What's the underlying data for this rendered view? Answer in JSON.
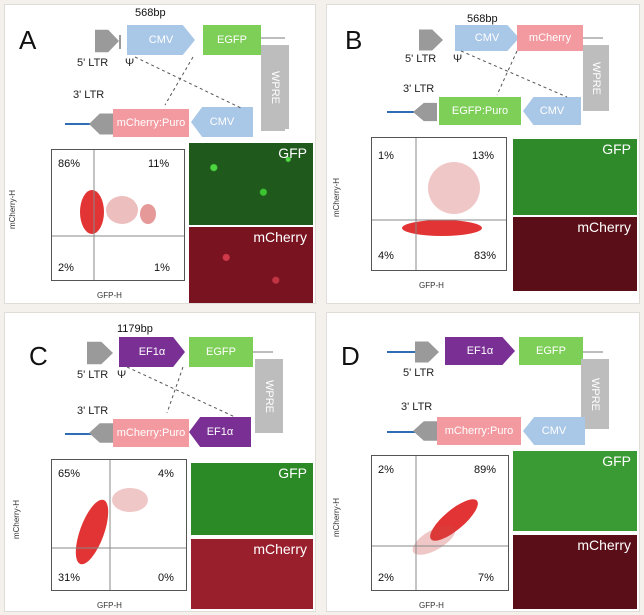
{
  "panels": [
    {
      "letter": "A",
      "bp": "568bp",
      "ltr5": "5' LTR",
      "psi": "Ψ",
      "ltr3": "3' LTR",
      "promoter_top": "CMV",
      "gene_top": "EGFP",
      "wpre": "WPRE",
      "promoter_bottom": "CMV",
      "gene_bottom": "mCherry:Puro",
      "ylabel": "mCherry-H",
      "xlabel": "GFP-H",
      "q_ul": "86%",
      "q_ur": "11%",
      "q_ll": "2%",
      "q_lr": "1%",
      "img_top": "GFP",
      "img_bottom": "mCherry"
    },
    {
      "letter": "B",
      "bp": "568bp",
      "ltr5": "5' LTR",
      "psi": "Ψ",
      "ltr3": "3' LTR",
      "promoter_top": "CMV",
      "gene_top": "mCherry",
      "wpre": "WPRE",
      "promoter_bottom": "CMV",
      "gene_bottom": "EGFP:Puro",
      "ylabel": "mCherry-H",
      "xlabel": "GFP-H",
      "q_ul": "1%",
      "q_ur": "13%",
      "q_ll": "4%",
      "q_lr": "83%",
      "img_top": "GFP",
      "img_bottom": "mCherry"
    },
    {
      "letter": "C",
      "bp": "1179bp",
      "ltr5": "5' LTR",
      "psi": "Ψ",
      "ltr3": "3' LTR",
      "promoter_top": "EF1α",
      "gene_top": "EGFP",
      "wpre": "WPRE",
      "promoter_bottom": "EF1α",
      "gene_bottom": "mCherry:Puro",
      "ylabel": "mCherry-H",
      "xlabel": "GFP-H",
      "q_ul": "65%",
      "q_ur": "4%",
      "q_ll": "31%",
      "q_lr": "0%",
      "img_top": "GFP",
      "img_bottom": "mCherry"
    },
    {
      "letter": "D",
      "bp": "",
      "ltr5": "5' LTR",
      "psi": "",
      "ltr3": "3' LTR",
      "promoter_top": "EF1α",
      "gene_top": "EGFP",
      "wpre": "WPRE",
      "promoter_bottom": "CMV",
      "gene_bottom": "mCherry:Puro",
      "ylabel": "mCherry-H",
      "xlabel": "GFP-H",
      "q_ul": "2%",
      "q_ur": "89%",
      "q_ll": "2%",
      "q_lr": "7%",
      "img_top": "GFP",
      "img_bottom": "mCherry"
    }
  ],
  "colors": {
    "cmv": "#a9c7e6",
    "ef1a": "#7a2f94",
    "egfp": "#7dcf57",
    "mcherry": "#f39aa0",
    "wpre": "#bdbdbd"
  }
}
